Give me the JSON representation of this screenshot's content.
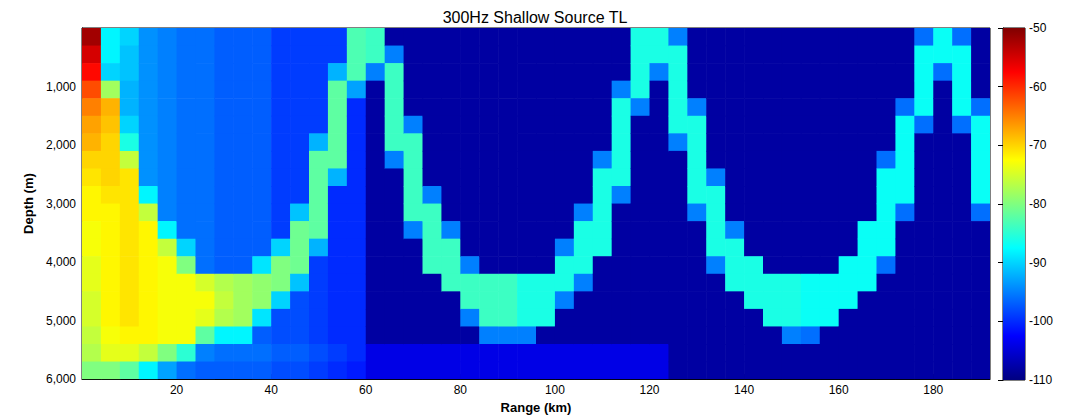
{
  "chart_data": {
    "type": "heatmap",
    "title": "300Hz Shallow Source TL",
    "x_label": "Range (km)",
    "y_label": "Depth (m)",
    "xlim": [
      0,
      192
    ],
    "ylim": [
      0,
      6000
    ],
    "xticks": [
      20,
      40,
      60,
      80,
      100,
      120,
      140,
      160,
      180
    ],
    "yticks": [
      1000,
      2000,
      3000,
      4000,
      5000,
      6000
    ],
    "grid": false,
    "colorbar_range": [
      -110,
      -50
    ],
    "colorbar_ticks": [
      -110,
      -100,
      -90,
      -80,
      -70,
      -60,
      -50
    ],
    "x": [
      2,
      6,
      10,
      14,
      18,
      22,
      26,
      30,
      34,
      38,
      42,
      46,
      50,
      54,
      58,
      62,
      66,
      70,
      74,
      78,
      82,
      86,
      90,
      94,
      98,
      102,
      106,
      110,
      114,
      118,
      122,
      126,
      130,
      134,
      138,
      142,
      146,
      150,
      154,
      158,
      162,
      166,
      170,
      174,
      178,
      182,
      186,
      190
    ],
    "y": [
      150,
      450,
      750,
      1050,
      1350,
      1650,
      1950,
      2250,
      2550,
      2850,
      3150,
      3450,
      3750,
      4050,
      4350,
      4650,
      4950,
      5250,
      5550,
      5850
    ],
    "values": [
      [
        -52,
        -55,
        -58,
        -62,
        -65,
        -67,
        -68,
        -70,
        -71,
        -72,
        -72,
        -73,
        -73,
        -74,
        -74,
        -75,
        -75,
        -76,
        -77,
        -80
      ],
      [
        -88,
        -88,
        -90,
        -78,
        -68,
        -69,
        -70,
        -70,
        -70,
        -71,
        -72,
        -72,
        -72,
        -72,
        -72,
        -72,
        -72,
        -73,
        -74,
        -80
      ],
      [
        -90,
        -91,
        -91,
        -92,
        -92,
        -90,
        -86,
        -76,
        -71,
        -71,
        -71,
        -71,
        -71,
        -71,
        -71,
        -71,
        -71,
        -72,
        -74,
        -82
      ],
      [
        -94,
        -94,
        -94,
        -94,
        -94,
        -94,
        -94,
        -94,
        -94,
        -88,
        -76,
        -72,
        -72,
        -72,
        -72,
        -72,
        -72,
        -72,
        -76,
        -88
      ],
      [
        -95,
        -95,
        -95,
        -95,
        -95,
        -95,
        -95,
        -95,
        -95,
        -95,
        -95,
        -88,
        -76,
        -73,
        -73,
        -73,
        -73,
        -73,
        -80,
        -93
      ],
      [
        -96,
        -96,
        -96,
        -96,
        -96,
        -96,
        -96,
        -96,
        -96,
        -96,
        -96,
        -96,
        -90,
        -80,
        -73,
        -73,
        -73,
        -73,
        -85,
        -96
      ],
      [
        -96,
        -96,
        -96,
        -96,
        -96,
        -96,
        -96,
        -96,
        -96,
        -96,
        -96,
        -96,
        -96,
        -96,
        -75,
        -73,
        -74,
        -82,
        -95,
        -97
      ],
      [
        -97,
        -97,
        -97,
        -97,
        -97,
        -97,
        -97,
        -97,
        -97,
        -97,
        -97,
        -97,
        -97,
        -97,
        -77,
        -76,
        -77,
        -88,
        -96,
        -97
      ],
      [
        -97,
        -97,
        -97,
        -97,
        -97,
        -97,
        -97,
        -97,
        -97,
        -97,
        -97,
        -97,
        -97,
        -97,
        -78,
        -78,
        -78,
        -88,
        -96,
        -97
      ],
      [
        -97,
        -97,
        -97,
        -97,
        -97,
        -97,
        -97,
        -97,
        -97,
        -97,
        -97,
        -97,
        -97,
        -89,
        -79,
        -79,
        -89,
        -97,
        -96,
        -97
      ],
      [
        -99,
        -99,
        -99,
        -99,
        -99,
        -99,
        -99,
        -99,
        -99,
        -99,
        -99,
        -99,
        -90,
        -80,
        -80,
        -90,
        -98,
        -98,
        -97,
        -98
      ],
      [
        -99,
        -99,
        -99,
        -99,
        -99,
        -99,
        -99,
        -99,
        -99,
        -99,
        -91,
        -81,
        -81,
        -81,
        -91,
        -98,
        -98,
        -98,
        -97,
        -98
      ],
      [
        -99,
        -99,
        -99,
        -99,
        -99,
        -99,
        -92,
        -82,
        -82,
        -82,
        -82,
        -82,
        -92,
        -99,
        -99,
        -99,
        -99,
        -99,
        -98,
        -99
      ],
      [
        -99,
        -99,
        -92,
        -82,
        -82,
        -82,
        -82,
        -82,
        -92,
        -100,
        -100,
        -100,
        -100,
        -100,
        -100,
        -100,
        -100,
        -100,
        -99,
        -100
      ],
      [
        -83,
        -83,
        -83,
        -93,
        -100,
        -100,
        -100,
        -100,
        -100,
        -100,
        -100,
        -100,
        -100,
        -100,
        -100,
        -100,
        -100,
        -100,
        -100,
        -101
      ],
      [
        -84,
        -84,
        -95,
        -108,
        -108,
        -108,
        -108,
        -108,
        -108,
        -108,
        -108,
        -108,
        -108,
        -108,
        -108,
        -108,
        -108,
        -108,
        -104,
        -104
      ],
      [
        -108,
        -95,
        -84,
        -84,
        -84,
        -84,
        -84,
        -95,
        -108,
        -108,
        -108,
        -108,
        -108,
        -108,
        -108,
        -108,
        -108,
        -108,
        -104,
        -104
      ],
      [
        -108,
        -108,
        -108,
        -108,
        -108,
        -95,
        -84,
        -84,
        -84,
        -84,
        -84,
        -95,
        -108,
        -108,
        -108,
        -108,
        -108,
        -108,
        -104,
        -104
      ],
      [
        -108,
        -108,
        -108,
        -108,
        -108,
        -108,
        -108,
        -108,
        -108,
        -95,
        -84,
        -84,
        -84,
        -84,
        -108,
        -108,
        -108,
        -108,
        -104,
        -104
      ],
      [
        -108,
        -108,
        -108,
        -108,
        -108,
        -108,
        -108,
        -108,
        -108,
        -108,
        -108,
        -95,
        -84,
        -84,
        -84,
        -108,
        -108,
        -108,
        -104,
        -104
      ],
      [
        -108,
        -108,
        -108,
        -108,
        -108,
        -108,
        -108,
        -108,
        -108,
        -108,
        -108,
        -108,
        -108,
        -95,
        -84,
        -84,
        -95,
        -108,
        -104,
        -104
      ],
      [
        -108,
        -108,
        -108,
        -108,
        -108,
        -108,
        -108,
        -108,
        -108,
        -108,
        -108,
        -108,
        -108,
        -108,
        -84,
        -84,
        -84,
        -95,
        -104,
        -104
      ],
      [
        -108,
        -108,
        -108,
        -108,
        -108,
        -108,
        -108,
        -108,
        -108,
        -108,
        -108,
        -108,
        -108,
        -108,
        -84,
        -84,
        -84,
        -95,
        -104,
        -104
      ],
      [
        -108,
        -108,
        -108,
        -108,
        -108,
        -108,
        -108,
        -108,
        -108,
        -108,
        -108,
        -108,
        -108,
        -108,
        -86,
        -86,
        -86,
        -95,
        -104,
        -104
      ],
      [
        -108,
        -108,
        -108,
        -108,
        -108,
        -108,
        -108,
        -108,
        -108,
        -108,
        -108,
        -108,
        -108,
        -108,
        -86,
        -86,
        -86,
        -108,
        -104,
        -104
      ],
      [
        -108,
        -108,
        -108,
        -108,
        -108,
        -108,
        -108,
        -108,
        -108,
        -108,
        -108,
        -108,
        -95,
        -86,
        -86,
        -95,
        -108,
        -108,
        -104,
        -104
      ],
      [
        -108,
        -108,
        -108,
        -108,
        -108,
        -108,
        -108,
        -108,
        -108,
        -108,
        -95,
        -86,
        -86,
        -86,
        -95,
        -108,
        -108,
        -108,
        -104,
        -104
      ],
      [
        -108,
        -108,
        -108,
        -108,
        -108,
        -108,
        -108,
        -95,
        -86,
        -86,
        -86,
        -86,
        -86,
        -108,
        -108,
        -108,
        -108,
        -108,
        -104,
        -104
      ],
      [
        -108,
        -108,
        -108,
        -95,
        -86,
        -86,
        -86,
        -86,
        -86,
        -95,
        -108,
        -108,
        -108,
        -108,
        -108,
        -108,
        -108,
        -108,
        -104,
        -104
      ],
      [
        -86,
        -86,
        -86,
        -86,
        -95,
        -108,
        -108,
        -108,
        -108,
        -108,
        -108,
        -108,
        -108,
        -108,
        -108,
        -108,
        -108,
        -108,
        -104,
        -104
      ],
      [
        -86,
        -86,
        -95,
        -108,
        -108,
        -108,
        -108,
        -108,
        -108,
        -108,
        -108,
        -108,
        -108,
        -108,
        -108,
        -108,
        -108,
        -108,
        -104,
        -104
      ],
      [
        -95,
        -86,
        -86,
        -86,
        -86,
        -86,
        -95,
        -108,
        -108,
        -108,
        -108,
        -108,
        -108,
        -108,
        -108,
        -108,
        -108,
        -108,
        -108,
        -108
      ],
      [
        -108,
        -108,
        -108,
        -108,
        -95,
        -86,
        -86,
        -86,
        -86,
        -86,
        -95,
        -108,
        -108,
        -108,
        -108,
        -108,
        -108,
        -108,
        -108,
        -108
      ],
      [
        -108,
        -108,
        -108,
        -108,
        -108,
        -108,
        -108,
        -108,
        -95,
        -86,
        -86,
        -86,
        -86,
        -95,
        -108,
        -108,
        -108,
        -108,
        -108,
        -108
      ],
      [
        -108,
        -108,
        -108,
        -108,
        -108,
        -108,
        -108,
        -108,
        -108,
        -108,
        -108,
        -95,
        -86,
        -86,
        -86,
        -108,
        -108,
        -108,
        -108,
        -108
      ],
      [
        -108,
        -108,
        -108,
        -108,
        -108,
        -108,
        -108,
        -108,
        -108,
        -108,
        -108,
        -108,
        -108,
        -86,
        -86,
        -86,
        -108,
        -108,
        -108,
        -108
      ],
      [
        -108,
        -108,
        -108,
        -108,
        -108,
        -108,
        -108,
        -108,
        -108,
        -108,
        -108,
        -108,
        -108,
        -108,
        -86,
        -86,
        -86,
        -108,
        -108,
        -108
      ],
      [
        -108,
        -108,
        -108,
        -108,
        -108,
        -108,
        -108,
        -108,
        -108,
        -108,
        -108,
        -108,
        -108,
        -108,
        -86,
        -86,
        -86,
        -95,
        -108,
        -108
      ],
      [
        -108,
        -108,
        -108,
        -108,
        -108,
        -108,
        -108,
        -108,
        -108,
        -108,
        -108,
        -108,
        -108,
        -108,
        -87,
        -87,
        -87,
        -96,
        -108,
        -108
      ],
      [
        -108,
        -108,
        -108,
        -108,
        -108,
        -108,
        -108,
        -108,
        -108,
        -108,
        -108,
        -108,
        -108,
        -108,
        -87,
        -87,
        -87,
        -108,
        -108,
        -108
      ],
      [
        -108,
        -108,
        -108,
        -108,
        -108,
        -108,
        -108,
        -108,
        -108,
        -108,
        -108,
        -108,
        -108,
        -87,
        -87,
        -87,
        -108,
        -108,
        -108,
        -108
      ],
      [
        -108,
        -108,
        -108,
        -108,
        -108,
        -108,
        -108,
        -108,
        -108,
        -108,
        -108,
        -87,
        -87,
        -87,
        -87,
        -108,
        -108,
        -108,
        -108,
        -108
      ],
      [
        -108,
        -108,
        -108,
        -108,
        -108,
        -108,
        -108,
        -96,
        -87,
        -87,
        -87,
        -87,
        -87,
        -96,
        -108,
        -108,
        -108,
        -108,
        -108,
        -108
      ],
      [
        -108,
        -108,
        -108,
        -108,
        -96,
        -87,
        -87,
        -87,
        -87,
        -87,
        -96,
        -108,
        -108,
        -108,
        -108,
        -108,
        -108,
        -108,
        -108,
        -108
      ],
      [
        -96,
        -87,
        -87,
        -87,
        -87,
        -96,
        -108,
        -108,
        -108,
        -108,
        -108,
        -108,
        -108,
        -108,
        -108,
        -108,
        -108,
        -108,
        -108,
        -108
      ],
      [
        -87,
        -87,
        -96,
        -108,
        -108,
        -108,
        -108,
        -108,
        -108,
        -108,
        -108,
        -108,
        -108,
        -108,
        -108,
        -108,
        -108,
        -108,
        -108,
        -108
      ],
      [
        -96,
        -87,
        -87,
        -87,
        -87,
        -96,
        -108,
        -108,
        -108,
        -108,
        -108,
        -108,
        -108,
        -108,
        -108,
        -108,
        -108,
        -108,
        -108,
        -108
      ],
      [
        -108,
        -108,
        -108,
        -108,
        -96,
        -87,
        -87,
        -87,
        -87,
        -87,
        -96,
        -108,
        -108,
        -108,
        -108,
        -108,
        -108,
        -108,
        -108,
        -108
      ]
    ]
  }
}
